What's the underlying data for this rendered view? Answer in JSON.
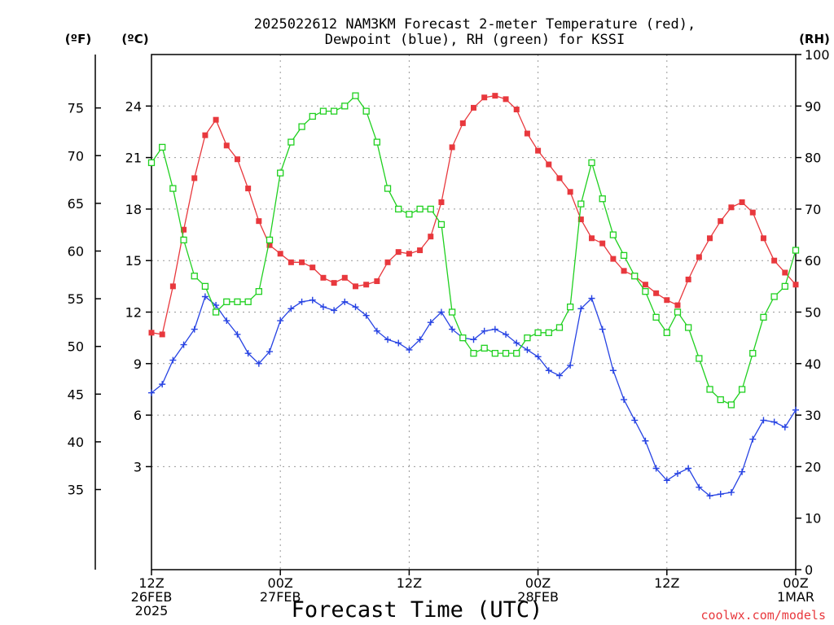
{
  "chart_data": {
    "type": "line",
    "title_line1": "2025022612 NAM3KM Forecast 2-meter Temperature (red),",
    "title_line2": "Dewpoint (blue), RH (green) for KSSI",
    "xlabel": "Forecast Time (UTC)",
    "credit": "coolwx.com/models",
    "units": {
      "fahrenheit": "(ºF)",
      "celsius": "(ºC)",
      "rh": "(RH)"
    },
    "xlim": [
      0,
      60
    ],
    "x_ticks": [
      {
        "x": 0,
        "lines": [
          "12Z",
          "26FEB",
          "2025"
        ]
      },
      {
        "x": 12,
        "lines": [
          "00Z",
          "27FEB"
        ]
      },
      {
        "x": 24,
        "lines": [
          "12Z"
        ]
      },
      {
        "x": 36,
        "lines": [
          "00Z",
          "28FEB"
        ]
      },
      {
        "x": 48,
        "lines": [
          "12Z"
        ]
      },
      {
        "x": 60,
        "lines": [
          "00Z",
          "1MAR"
        ]
      }
    ],
    "celsius_axis": {
      "range": [
        -3,
        27
      ],
      "ticks": [
        3,
        6,
        9,
        12,
        15,
        18,
        21,
        24
      ]
    },
    "fahrenheit_axis": {
      "ticks": [
        35,
        40,
        45,
        50,
        55,
        60,
        65,
        70,
        75
      ]
    },
    "rh_axis": {
      "range": [
        0,
        100
      ],
      "ticks": [
        0,
        10,
        20,
        30,
        40,
        50,
        60,
        70,
        80,
        90,
        100
      ]
    },
    "grid": true,
    "x": [
      0,
      1,
      2,
      3,
      4,
      5,
      6,
      7,
      8,
      9,
      10,
      11,
      12,
      13,
      14,
      15,
      16,
      17,
      18,
      19,
      20,
      21,
      22,
      23,
      24,
      25,
      26,
      27,
      28,
      29,
      30,
      31,
      32,
      33,
      34,
      35,
      36,
      37,
      38,
      39,
      40,
      41,
      42,
      43,
      44,
      45,
      46,
      47,
      48,
      49,
      50,
      51,
      52,
      53,
      54,
      55,
      56,
      57,
      58,
      59,
      60
    ],
    "series": [
      {
        "name": "Temperature",
        "axis": "celsius",
        "color": "#e8383d",
        "marker": "filled-square",
        "values": [
          10.8,
          10.7,
          13.5,
          16.8,
          19.8,
          22.3,
          23.2,
          21.7,
          20.9,
          19.2,
          17.3,
          15.9,
          15.4,
          14.9,
          14.9,
          14.6,
          14.0,
          13.7,
          14.0,
          13.5,
          13.6,
          13.8,
          14.9,
          15.5,
          15.4,
          15.6,
          16.4,
          18.4,
          21.6,
          23.0,
          23.9,
          24.5,
          24.6,
          24.4,
          23.8,
          22.4,
          21.4,
          20.6,
          19.8,
          19.0,
          17.4,
          16.3,
          16.0,
          15.1,
          14.4,
          14.1,
          13.6,
          13.1,
          12.7,
          12.4,
          13.9,
          15.2,
          16.3,
          17.3,
          18.1,
          18.4,
          17.8,
          16.3,
          15.0,
          14.3,
          13.6
        ]
      },
      {
        "name": "Dewpoint",
        "axis": "celsius",
        "color": "#2743e3",
        "marker": "plus",
        "values": [
          7.3,
          7.8,
          9.2,
          10.1,
          11.0,
          12.9,
          12.4,
          11.5,
          10.7,
          9.6,
          9.0,
          9.7,
          11.5,
          12.2,
          12.6,
          12.7,
          12.3,
          12.1,
          12.6,
          12.3,
          11.8,
          10.9,
          10.4,
          10.2,
          9.8,
          10.4,
          11.4,
          12.0,
          11.0,
          10.5,
          10.4,
          10.9,
          11.0,
          10.7,
          10.2,
          9.8,
          9.4,
          8.6,
          8.3,
          8.9,
          12.2,
          12.8,
          11.0,
          8.6,
          6.9,
          5.7,
          4.5,
          2.9,
          2.2,
          2.6,
          2.9,
          1.8,
          1.3,
          1.4,
          1.5,
          2.7,
          4.6,
          5.7,
          5.6,
          5.3,
          6.3
        ]
      },
      {
        "name": "RH",
        "axis": "rh",
        "color": "#20d020",
        "marker": "open-square",
        "values": [
          79,
          82,
          74,
          64,
          57,
          55,
          50,
          52,
          52,
          52,
          54,
          64,
          77,
          83,
          86,
          88,
          89,
          89,
          90,
          92,
          89,
          83,
          74,
          70,
          69,
          70,
          70,
          67,
          50,
          45,
          42,
          43,
          42,
          42,
          42,
          45,
          46,
          46,
          47,
          51,
          71,
          79,
          72,
          65,
          61,
          57,
          54,
          49,
          46,
          50,
          47,
          41,
          35,
          33,
          32,
          35,
          42,
          49,
          53,
          55,
          62
        ]
      }
    ]
  }
}
